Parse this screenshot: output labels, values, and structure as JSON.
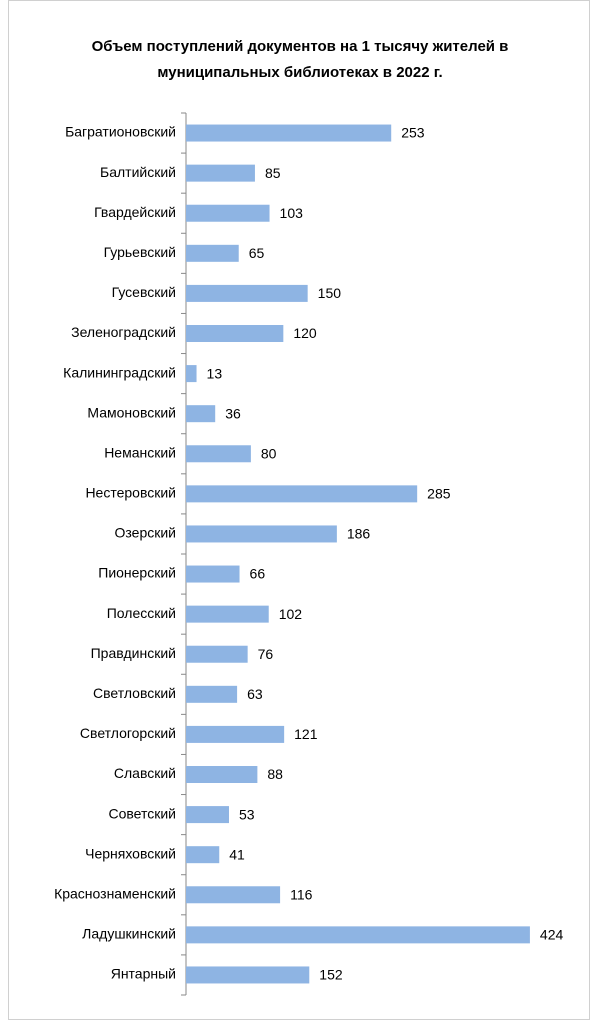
{
  "chart_data": {
    "type": "bar",
    "orientation": "horizontal",
    "title": [
      "Объем поступлений документов на 1 тысячу жителей в",
      "муниципальных библиотеках в 2022 г."
    ],
    "categories": [
      "Багратионовский",
      "Балтийский",
      "Гвардейский",
      "Гурьевский",
      "Гусевский",
      "Зеленоградский",
      "Калининградский",
      "Мамоновский",
      "Неманский",
      "Нестеровский",
      "Озерский",
      "Пионерский",
      "Полесский",
      "Правдинский",
      "Светловский",
      "Светлогорский",
      "Славский",
      "Советский",
      "Черняховский",
      "Краснознаменский",
      "Ладушкинский",
      "Янтарный"
    ],
    "values": [
      253,
      85,
      103,
      65,
      150,
      120,
      13,
      36,
      80,
      285,
      186,
      66,
      102,
      76,
      63,
      121,
      88,
      53,
      41,
      116,
      424,
      152
    ],
    "color": "#8eb4e3",
    "xlim": [
      0,
      450
    ]
  }
}
